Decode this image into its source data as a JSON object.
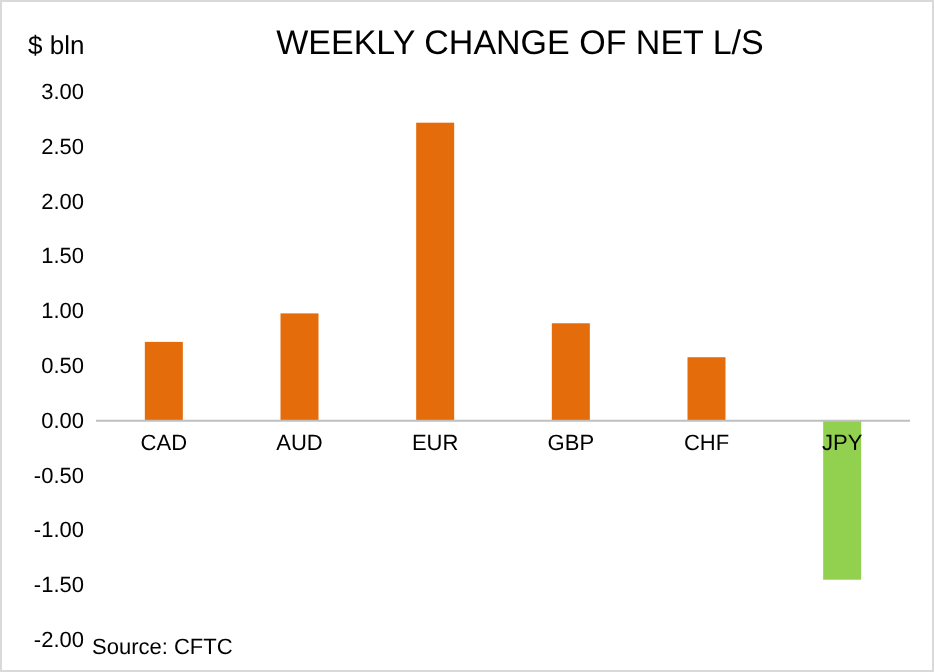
{
  "chart_data": {
    "type": "bar",
    "title": "WEEKLY CHANGE OF NET L/S",
    "ylabel": "$ bln",
    "categories": [
      "CAD",
      "AUD",
      "EUR",
      "GBP",
      "CHF",
      "JPY"
    ],
    "values": [
      0.72,
      0.98,
      2.72,
      0.89,
      0.58,
      -1.45
    ],
    "colors": [
      "#e46c0a",
      "#e46c0a",
      "#e46c0a",
      "#e46c0a",
      "#e46c0a",
      "#92d050"
    ],
    "ylim": [
      -2,
      3
    ],
    "yticks": [
      {
        "value": 3,
        "label": "3.00"
      },
      {
        "value": 2.5,
        "label": "2.50"
      },
      {
        "value": 2,
        "label": "2.00"
      },
      {
        "value": 1.5,
        "label": "1.50"
      },
      {
        "value": 1,
        "label": "1.00"
      },
      {
        "value": 0.5,
        "label": "0.50"
      },
      {
        "value": 0,
        "label": "0.00"
      },
      {
        "value": -0.5,
        "label": "-0.50"
      },
      {
        "value": -1,
        "label": "-1.00"
      },
      {
        "value": -1.5,
        "label": "-1.50"
      },
      {
        "value": -2,
        "label": "-2.00"
      }
    ],
    "grid": false,
    "annotations": [
      "Source: CFTC"
    ]
  }
}
